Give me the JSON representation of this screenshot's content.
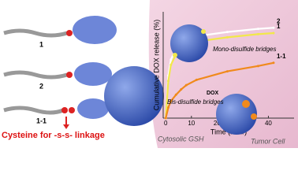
{
  "left_panel": {
    "molecule_labels": [
      "1",
      "2",
      "1-1"
    ],
    "caption": "Cysteine for -s-s- linkage"
  },
  "right_panel": {
    "cytosol_label": "Cytosolic GSH",
    "cell_label": "Tumor Cell",
    "mono_label": "Mono-disulfide bridges",
    "bis_label": "Bis-disulfide bridges",
    "dox_label": "DOX"
  },
  "chart_data": {
    "type": "line",
    "y_label": "Cumulative DOX release (%)",
    "x_label": "Time (hour)",
    "x": [
      0,
      1,
      2,
      4,
      6,
      8,
      12,
      24,
      36,
      42
    ],
    "series": [
      {
        "name": "2",
        "color": "#ffffff",
        "values": [
          0,
          40,
          55,
          65,
          70,
          73,
          77,
          81,
          84,
          85
        ]
      },
      {
        "name": "1",
        "color": "#f2e84a",
        "values": [
          0,
          35,
          50,
          60,
          65,
          68,
          72,
          76,
          79,
          80
        ]
      },
      {
        "name": "1-1",
        "color": "#f08a1c",
        "values": [
          0,
          10,
          16,
          22,
          27,
          31,
          36,
          44,
          49,
          52
        ]
      }
    ],
    "xlim": [
      -1,
      50
    ],
    "ylim": [
      0,
      100
    ],
    "xticks": [
      0,
      10,
      20,
      30,
      40
    ]
  }
}
